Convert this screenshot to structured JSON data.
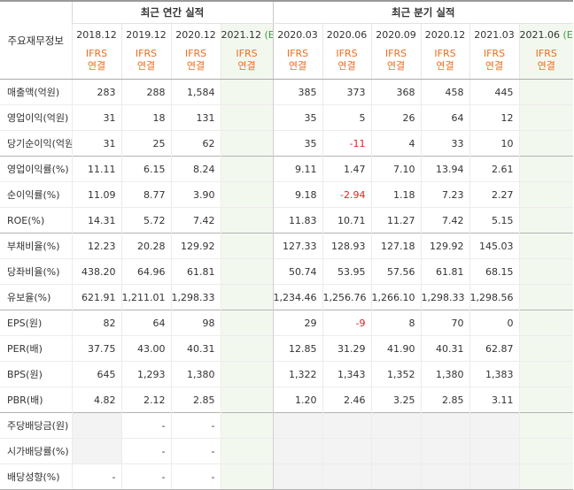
{
  "header": {
    "main_label": "주요재무정보",
    "annual_title": "최근 연간 실적",
    "quarterly_title": "최근 분기 실적",
    "annual_periods": [
      {
        "label": "2018.12",
        "est": ""
      },
      {
        "label": "2019.12",
        "est": ""
      },
      {
        "label": "2020.12",
        "est": ""
      },
      {
        "label": "2021.12",
        "est": "(E)"
      }
    ],
    "quarterly_periods": [
      {
        "label": "2020.03",
        "est": ""
      },
      {
        "label": "2020.06",
        "est": ""
      },
      {
        "label": "2020.09",
        "est": ""
      },
      {
        "label": "2020.12",
        "est": ""
      },
      {
        "label": "2021.03",
        "est": ""
      },
      {
        "label": "2021.06",
        "est": "(E)"
      }
    ],
    "ifrs_line1": "IFRS",
    "ifrs_line2": "연결"
  },
  "colors": {
    "ifrs": "#f06c1b",
    "estimate": "#3a9b46",
    "negative": "#e52020",
    "estimate_bg": "#f3f8ef"
  },
  "rows": [
    {
      "label": "매출액(억원)",
      "group_start": true,
      "annual": [
        "283",
        "288",
        "1,584",
        ""
      ],
      "quarterly": [
        "385",
        "373",
        "368",
        "458",
        "445",
        ""
      ]
    },
    {
      "label": "영업이익(억원)",
      "group_start": false,
      "annual": [
        "31",
        "18",
        "131",
        ""
      ],
      "quarterly": [
        "35",
        "5",
        "26",
        "64",
        "12",
        ""
      ]
    },
    {
      "label": "당기순이익(억원)",
      "group_start": false,
      "annual": [
        "31",
        "25",
        "62",
        ""
      ],
      "quarterly": [
        "35",
        "-11",
        "4",
        "33",
        "10",
        ""
      ]
    },
    {
      "label": "영업이익률(%)",
      "group_start": true,
      "annual": [
        "11.11",
        "6.15",
        "8.24",
        ""
      ],
      "quarterly": [
        "9.11",
        "1.47",
        "7.10",
        "13.94",
        "2.61",
        ""
      ]
    },
    {
      "label": "순이익률(%)",
      "group_start": false,
      "annual": [
        "11.09",
        "8.77",
        "3.90",
        ""
      ],
      "quarterly": [
        "9.18",
        "-2.94",
        "1.18",
        "7.23",
        "2.27",
        ""
      ]
    },
    {
      "label": "ROE(%)",
      "group_start": false,
      "annual": [
        "14.31",
        "5.72",
        "7.42",
        ""
      ],
      "quarterly": [
        "11.83",
        "10.71",
        "11.27",
        "7.42",
        "5.15",
        ""
      ]
    },
    {
      "label": "부채비율(%)",
      "group_start": true,
      "annual": [
        "12.23",
        "20.28",
        "129.92",
        ""
      ],
      "quarterly": [
        "127.33",
        "128.93",
        "127.18",
        "129.92",
        "145.03",
        ""
      ]
    },
    {
      "label": "당좌비율(%)",
      "group_start": false,
      "annual": [
        "438.20",
        "64.96",
        "61.81",
        ""
      ],
      "quarterly": [
        "50.74",
        "53.95",
        "57.56",
        "61.81",
        "68.15",
        ""
      ]
    },
    {
      "label": "유보율(%)",
      "group_start": false,
      "annual": [
        "621.91",
        "1,211.01",
        "1,298.33",
        ""
      ],
      "quarterly": [
        "1,234.46",
        "1,256.76",
        "1,266.10",
        "1,298.33",
        "1,298.56",
        ""
      ]
    },
    {
      "label": "EPS(원)",
      "group_start": true,
      "annual": [
        "82",
        "64",
        "98",
        ""
      ],
      "quarterly": [
        "29",
        "-9",
        "8",
        "70",
        "0",
        ""
      ]
    },
    {
      "label": "PER(배)",
      "group_start": false,
      "annual": [
        "37.75",
        "43.00",
        "40.31",
        ""
      ],
      "quarterly": [
        "12.85",
        "31.29",
        "41.90",
        "40.31",
        "62.87",
        ""
      ]
    },
    {
      "label": "BPS(원)",
      "group_start": false,
      "annual": [
        "645",
        "1,293",
        "1,380",
        ""
      ],
      "quarterly": [
        "1,322",
        "1,343",
        "1,352",
        "1,380",
        "1,383",
        ""
      ]
    },
    {
      "label": "PBR(배)",
      "group_start": false,
      "annual": [
        "4.82",
        "2.12",
        "2.85",
        ""
      ],
      "quarterly": [
        "1.20",
        "2.46",
        "3.25",
        "2.85",
        "3.11",
        ""
      ]
    },
    {
      "label": "주당배당금(원)",
      "group_start": true,
      "annual": [
        "",
        "-",
        "-",
        ""
      ],
      "quarterly": [
        "",
        "",
        "",
        "",
        "",
        ""
      ],
      "annual_empty0": true
    },
    {
      "label": "시가배당률(%)",
      "group_start": false,
      "annual": [
        "",
        "-",
        "-",
        ""
      ],
      "quarterly": [
        "",
        "",
        "",
        "",
        "",
        ""
      ],
      "annual_empty0": true
    },
    {
      "label": "배당성향(%)",
      "group_start": false,
      "annual": [
        "-",
        "-",
        "-",
        ""
      ],
      "quarterly": [
        "",
        "",
        "",
        "",
        "",
        ""
      ],
      "annual_empty0": false
    }
  ]
}
